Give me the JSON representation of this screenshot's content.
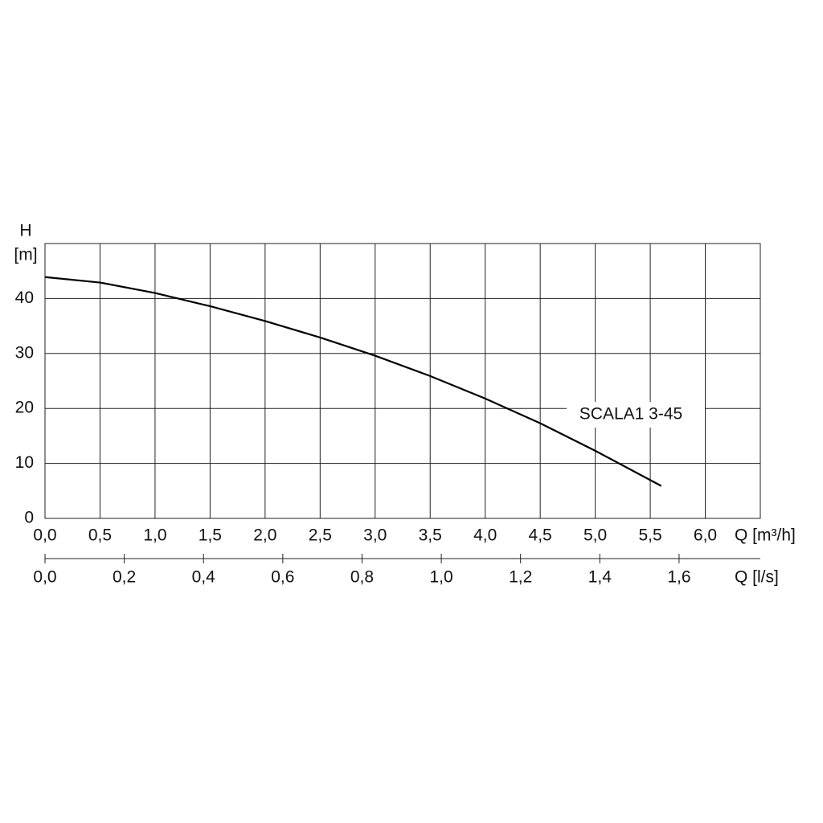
{
  "chart_data": {
    "type": "line",
    "y_label_symbol": "H",
    "y_label_unit": "[m]",
    "x_label": "Q [m³/h]",
    "x2_label": "Q [l/s]",
    "x": [
      0,
      0.5,
      1.0,
      1.5,
      2.0,
      2.5,
      3.0,
      3.5,
      4.0,
      4.5,
      5.0,
      5.6
    ],
    "series": [
      {
        "name": "SCALA1 3-45",
        "color": "#000000",
        "values": [
          43.9,
          42.9,
          41.0,
          38.6,
          35.9,
          32.9,
          29.6,
          25.9,
          21.8,
          17.3,
          12.3,
          5.9
        ]
      }
    ],
    "xlim": [
      0,
      6.5
    ],
    "xticks": [
      {
        "value": 0,
        "label": "0,0"
      },
      {
        "value": 0.5,
        "label": "0,5"
      },
      {
        "value": 1,
        "label": "1,0"
      },
      {
        "value": 1.5,
        "label": "1,5"
      },
      {
        "value": 2,
        "label": "2,0"
      },
      {
        "value": 2.5,
        "label": "2,5"
      },
      {
        "value": 3,
        "label": "3,0"
      },
      {
        "value": 3.5,
        "label": "3,5"
      },
      {
        "value": 4,
        "label": "4,0"
      },
      {
        "value": 4.5,
        "label": "4,5"
      },
      {
        "value": 5,
        "label": "5,0"
      },
      {
        "value": 5.5,
        "label": "5,5"
      },
      {
        "value": 6,
        "label": "6,0"
      }
    ],
    "x2lim": [
      0,
      1.805
    ],
    "x2ticks": [
      {
        "value": 0,
        "label": "0,0"
      },
      {
        "value": 0.2,
        "label": "0,2"
      },
      {
        "value": 0.4,
        "label": "0,4"
      },
      {
        "value": 0.6,
        "label": "0,6"
      },
      {
        "value": 0.8,
        "label": "0,8"
      },
      {
        "value": 1,
        "label": "1,0"
      },
      {
        "value": 1.2,
        "label": "1,2"
      },
      {
        "value": 1.4,
        "label": "1,4"
      },
      {
        "value": 1.6,
        "label": "1,6"
      }
    ],
    "ylim": [
      0,
      50
    ],
    "yticks": [
      0,
      10,
      20,
      30,
      40
    ],
    "grid": true
  }
}
